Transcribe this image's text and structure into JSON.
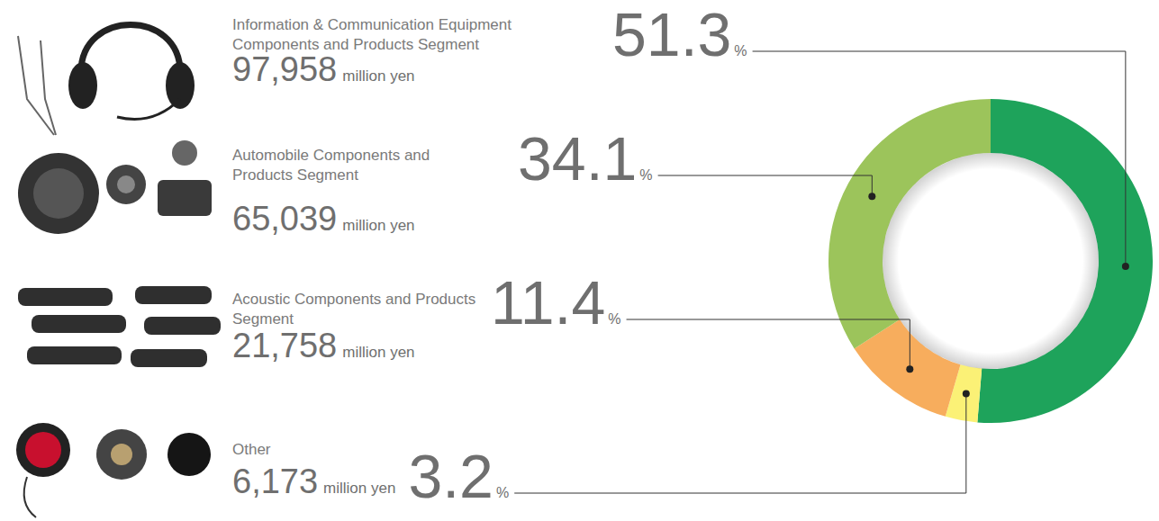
{
  "chart_data": {
    "type": "donut",
    "categories": [
      "Information & Communication Equipment Components and Products Segment",
      "Automobile Components and Products Segment",
      "Acoustic Components and Products Segment",
      "Other"
    ],
    "values": [
      51.3,
      34.1,
      11.4,
      3.2
    ],
    "percent_sign": "%",
    "amounts": [
      97958,
      65039,
      21758,
      6173
    ],
    "amount_labels": [
      "97,958",
      "65,039",
      "21,758",
      "6,173"
    ],
    "amount_unit": "million yen",
    "colors": [
      "#1ea35b",
      "#9cc45b",
      "#f7ad5d",
      "#fbf176"
    ],
    "data_labels": true
  }
}
